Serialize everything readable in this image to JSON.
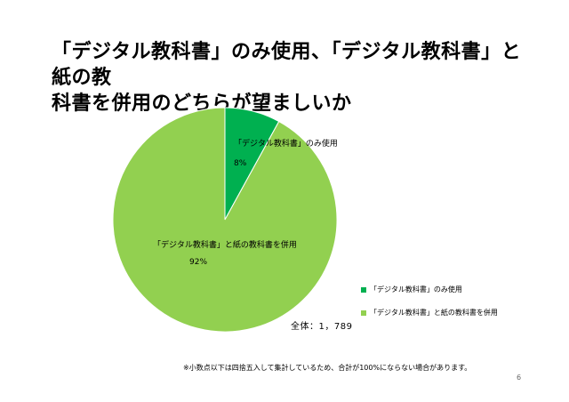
{
  "title": {
    "line1": "「デジタル教科書」のみ使用、「デジタル教科書」と紙の教",
    "line2": "科書を併用のどちらが望ましいか"
  },
  "chart_data": {
    "type": "pie",
    "title": "「デジタル教科書」のみ使用、「デジタル教科書」と紙の教科書を併用のどちらが望ましいか",
    "slices": [
      {
        "label": "「デジタル教科書」のみ使用",
        "percent_label": "8%",
        "value": 8,
        "color": "#00b050"
      },
      {
        "label": "「デジタル教科書」と紙の教科書を併用",
        "percent_label": "92%",
        "value": 92,
        "color": "#92d050"
      }
    ],
    "legend_position": "bottom-right"
  },
  "total_label": "全体：1，789",
  "footnote": "※小数点以下は四捨五入して集計しているため、合計が100%にならない場合があります。",
  "page_number": "6"
}
